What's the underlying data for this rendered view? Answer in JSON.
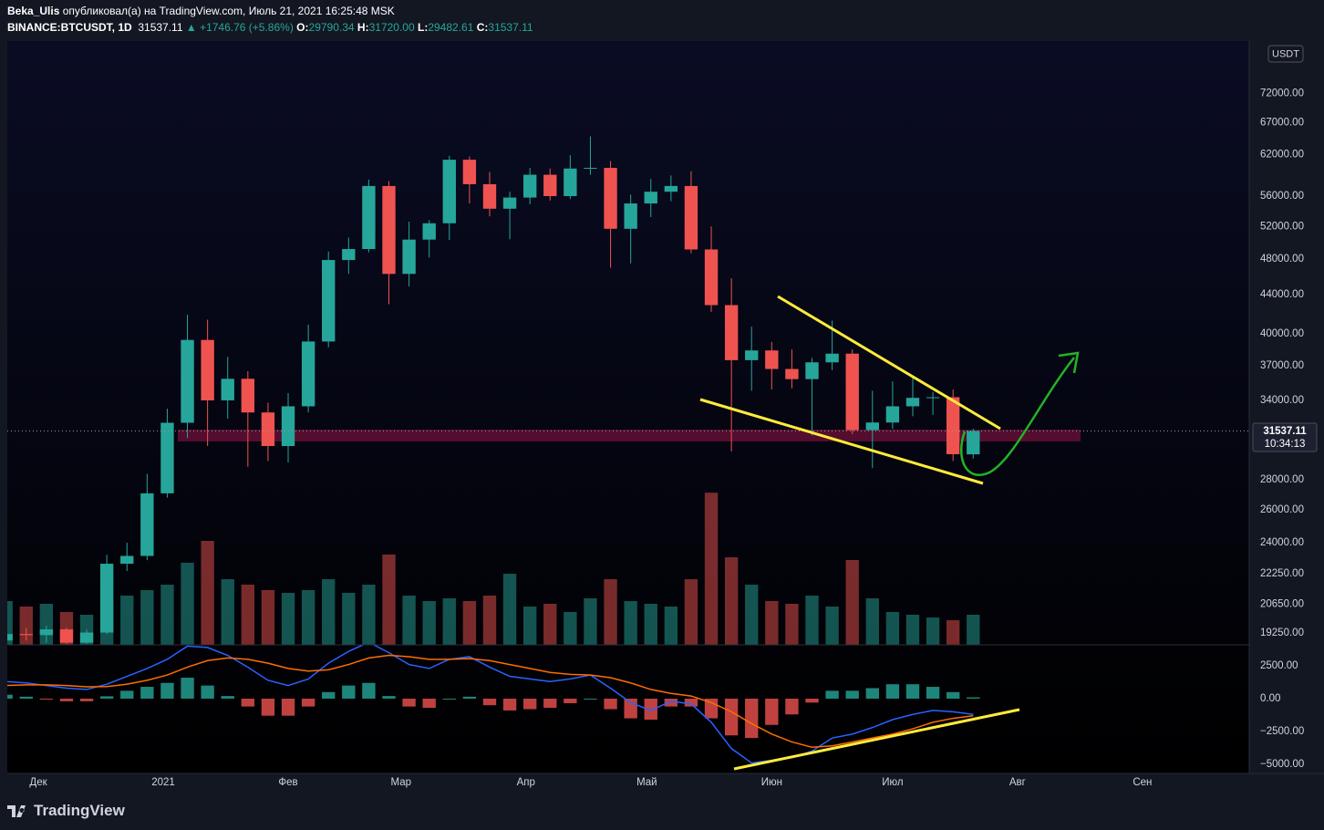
{
  "header": {
    "author": "Beka_Ulis",
    "published": "опубликовал(а) на TradingView.com, Июль 21, 2021 16:25:48 MSK",
    "symbol": "BINANCE:BTCUSDT, 1D",
    "last": "31537.11",
    "change": "▲ +1746.76 (+5.86%)",
    "o_label": "O:",
    "o": "29790.34",
    "h_label": "H:",
    "h": "31720.00",
    "l_label": "L:",
    "l": "29482.61",
    "c_label": "C:",
    "c": "31537.11"
  },
  "currency": "USDT",
  "price_tag": {
    "price": "31537.11",
    "countdown": "10:34:13"
  },
  "footer": {
    "brand": "TradingView"
  },
  "chart_data": {
    "type": "candlestick",
    "log_scale": true,
    "grid": false,
    "up_color": "#26a69a",
    "down_color": "#ef5350",
    "macd_color": "#2962ff",
    "signal_color": "#ff6d00",
    "x": [
      -8,
      -3,
      2,
      7,
      12,
      17,
      22,
      27,
      32,
      37,
      42,
      47,
      52,
      57,
      62,
      67,
      72,
      77,
      82,
      87,
      92,
      97,
      102,
      107,
      112,
      117,
      122,
      127,
      132,
      137,
      142,
      147,
      152,
      157,
      162,
      167,
      172,
      177,
      182,
      187,
      192,
      197,
      202,
      207,
      212,
      217,
      222,
      227,
      232
    ],
    "xlim": [
      -7.7,
      300.5
    ],
    "xticks": [
      {
        "value": 0,
        "label": "Дек"
      },
      {
        "value": 31,
        "label": "2021"
      },
      {
        "value": 62,
        "label": "Фев"
      },
      {
        "value": 90,
        "label": "Мар"
      },
      {
        "value": 121,
        "label": "Апр"
      },
      {
        "value": 151,
        "label": "Май"
      },
      {
        "value": 182,
        "label": "Июн"
      },
      {
        "value": 212,
        "label": "Июл"
      },
      {
        "value": 243,
        "label": "Авг"
      },
      {
        "value": 274,
        "label": "Сен"
      }
    ],
    "open": [
      18900,
      19200,
      19150,
      19420,
      18800,
      19270,
      22800,
      23240,
      27080,
      32180,
      39400,
      33990,
      35830,
      33000,
      30400,
      33500,
      39250,
      47900,
      49200,
      57400,
      46300,
      50350,
      52400,
      61200,
      57650,
      54300,
      55800,
      59000,
      56000,
      59900,
      60000,
      51700,
      55000,
      56600,
      57400,
      49150,
      42900,
      37500,
      38400,
      36700,
      35800,
      37300,
      38100,
      31600,
      32200,
      33500,
      34200,
      34250,
      29790.34
    ],
    "high": [
      19500,
      19500,
      19600,
      19500,
      19400,
      23300,
      24000,
      28400,
      33300,
      41900,
      41400,
      37800,
      36500,
      33800,
      34600,
      40900,
      48900,
      50600,
      58300,
      58100,
      52600,
      52800,
      61800,
      61700,
      59400,
      56600,
      60000,
      59900,
      61900,
      64800,
      61000,
      56200,
      58400,
      58900,
      59500,
      52000,
      45800,
      40700,
      39200,
      38500,
      37700,
      41300,
      38500,
      34800,
      35600,
      36000,
      34700,
      34900,
      31720
    ],
    "low": [
      18800,
      18900,
      18800,
      18750,
      18750,
      19200,
      22400,
      23000,
      26800,
      31000,
      30400,
      32500,
      28900,
      29300,
      29200,
      33000,
      38700,
      46300,
      48800,
      43000,
      44900,
      48200,
      50300,
      55000,
      53300,
      50400,
      54900,
      55400,
      55600,
      59000,
      47000,
      47500,
      53200,
      55300,
      48700,
      42200,
      30000,
      34800,
      34900,
      35000,
      31200,
      36600,
      31300,
      28800,
      31700,
      32700,
      32800,
      29300,
      29482.61
    ],
    "close": [
      19200,
      19150,
      19420,
      18800,
      19270,
      22800,
      23240,
      27080,
      32180,
      39400,
      33990,
      35830,
      33000,
      30400,
      33500,
      39250,
      47900,
      49200,
      57400,
      46300,
      50350,
      52400,
      61200,
      57650,
      54300,
      55800,
      59000,
      56000,
      59900,
      60000,
      51700,
      55000,
      56600,
      57400,
      49150,
      42900,
      37500,
      38400,
      36700,
      35800,
      37300,
      38100,
      31600,
      32200,
      33500,
      34200,
      34250,
      29800,
      31537.11
    ],
    "ylim": [
      18700,
      81800
    ],
    "yticks": [
      {
        "value": 72000,
        "label": "72000.00"
      },
      {
        "value": 67000,
        "label": "67000.00"
      },
      {
        "value": 62000,
        "label": "62000.00"
      },
      {
        "value": 56000,
        "label": "56000.00"
      },
      {
        "value": 52000,
        "label": "52000.00"
      },
      {
        "value": 48000,
        "label": "48000.00"
      },
      {
        "value": 44000,
        "label": "44000.00"
      },
      {
        "value": 40000,
        "label": "40000.00"
      },
      {
        "value": 37000,
        "label": "37000.00"
      },
      {
        "value": 34000,
        "label": "34000.00"
      },
      {
        "value": 28000,
        "label": "28000.00"
      },
      {
        "value": 26000,
        "label": "26000.00"
      },
      {
        "value": 24000,
        "label": "24000.00"
      },
      {
        "value": 22250,
        "label": "22250.00"
      },
      {
        "value": 20650,
        "label": "20650.00"
      },
      {
        "value": 19250,
        "label": "19250.00"
      }
    ],
    "volume": [
      80000,
      70000,
      75000,
      60000,
      55000,
      85000,
      90000,
      100000,
      110000,
      150000,
      190000,
      120000,
      110000,
      100000,
      95000,
      100000,
      120000,
      95000,
      110000,
      165000,
      90000,
      80000,
      85000,
      80000,
      90000,
      130000,
      70000,
      75000,
      60000,
      85000,
      120000,
      80000,
      75000,
      70000,
      120000,
      278000,
      160000,
      110000,
      80000,
      75000,
      90000,
      70000,
      155000,
      85000,
      60000,
      55000,
      50000,
      45000,
      55000
    ],
    "volume_ylim": [
      0,
      300000
    ],
    "macd": [
      1300,
      1200,
      1000,
      800,
      700,
      1100,
      1700,
      2300,
      3000,
      4000,
      3900,
      3300,
      2400,
      1400,
      1000,
      1500,
      2700,
      3600,
      4300,
      3500,
      2600,
      2300,
      3000,
      3200,
      2400,
      1700,
      1500,
      1300,
      1500,
      1800,
      800,
      -300,
      -900,
      -200,
      -400,
      -1800,
      -3800,
      -4900,
      -4700,
      -4500,
      -4000,
      -3000,
      -2700,
      -2200,
      -1600,
      -1200,
      -900,
      -1000,
      -1200
    ],
    "signal": [
      1000,
      1050,
      1050,
      1000,
      900,
      920,
      1100,
      1400,
      1800,
      2400,
      2900,
      3100,
      3000,
      2700,
      2300,
      2100,
      2200,
      2600,
      3100,
      3300,
      3200,
      3000,
      3000,
      3050,
      2900,
      2600,
      2300,
      2000,
      1850,
      1800,
      1600,
      1200,
      700,
      400,
      200,
      -300,
      -1000,
      -1900,
      -2700,
      -3300,
      -3700,
      -3600,
      -3300,
      -3000,
      -2700,
      -2300,
      -1800,
      -1500,
      -1300
    ],
    "histogram": [
      300,
      150,
      -50,
      -200,
      -200,
      180,
      600,
      900,
      1200,
      1600,
      1000,
      200,
      -600,
      -1300,
      -1300,
      -600,
      500,
      1000,
      1200,
      200,
      -600,
      -700,
      0,
      150,
      -500,
      -900,
      -800,
      -700,
      -350,
      0,
      -800,
      -1500,
      -1600,
      -600,
      -600,
      -1500,
      -2800,
      -3000,
      -2000,
      -1200,
      -300,
      600,
      600,
      800,
      1100,
      1100,
      900,
      500,
      100
    ],
    "macd_ylim": [
      -5700,
      4100
    ],
    "macd_yticks": [
      {
        "value": 2500,
        "label": "2500.00"
      },
      {
        "value": 0,
        "label": "0.00"
      },
      {
        "value": -2500,
        "label": "−2500.00"
      },
      {
        "value": -5000,
        "label": "−5000.00"
      }
    ]
  }
}
